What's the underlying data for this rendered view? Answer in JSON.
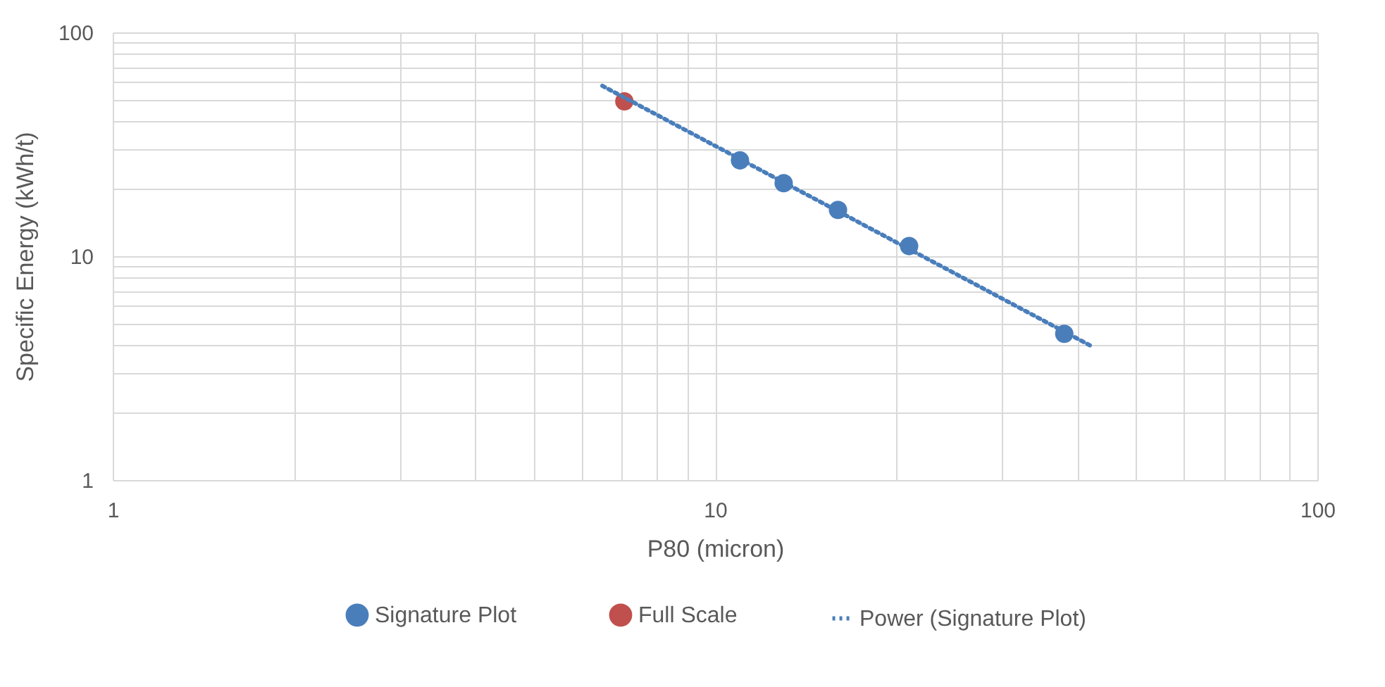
{
  "chart_data": {
    "type": "scatter",
    "xlabel": "P80 (micron)",
    "ylabel": "Specific Energy (kWh/t)",
    "log": "xy",
    "grid": true,
    "legend": "bottom",
    "xlim": [
      1,
      100
    ],
    "ylim": [
      1,
      100
    ],
    "xticks": [
      1,
      {
        "value": 2,
        "label": null
      },
      {
        "value": 3,
        "label": null
      },
      {
        "value": 4,
        "label": null
      },
      {
        "value": 5,
        "label": null
      },
      {
        "value": 6,
        "label": null
      },
      {
        "value": 7,
        "label": null
      },
      {
        "value": 8,
        "label": null
      },
      {
        "value": 9,
        "label": null
      },
      10,
      {
        "value": 20,
        "label": null
      },
      {
        "value": 30,
        "label": null
      },
      {
        "value": 40,
        "label": null
      },
      {
        "value": 50,
        "label": null
      },
      {
        "value": 60,
        "label": null
      },
      {
        "value": 70,
        "label": null
      },
      {
        "value": 80,
        "label": null
      },
      {
        "value": 90,
        "label": null
      },
      100
    ],
    "yticks": [
      1,
      {
        "value": 2,
        "label": null
      },
      {
        "value": 3,
        "label": null
      },
      {
        "value": 4,
        "label": null
      },
      {
        "value": 5,
        "label": null
      },
      {
        "value": 6,
        "label": null
      },
      {
        "value": 7,
        "label": null
      },
      {
        "value": 8,
        "label": null
      },
      {
        "value": 9,
        "label": null
      },
      10,
      {
        "value": 20,
        "label": null
      },
      {
        "value": 30,
        "label": null
      },
      {
        "value": 40,
        "label": null
      },
      {
        "value": 50,
        "label": null
      },
      {
        "value": 60,
        "label": null
      },
      {
        "value": 70,
        "label": null
      },
      {
        "value": 80,
        "label": null
      },
      {
        "value": 90,
        "label": null
      },
      100
    ],
    "series": [
      {
        "name": "Signature Plot",
        "marker": "circle",
        "color": "#4a7ebb",
        "x": [
          11.0,
          13.0,
          16.0,
          21.0,
          38.0
        ],
        "values": [
          26.8,
          21.2,
          16.1,
          11.1,
          4.5
        ]
      },
      {
        "name": "Full Scale",
        "marker": "circle",
        "color": "#c0504d",
        "x": [
          7.07
        ],
        "values": [
          49.2
        ]
      },
      {
        "name": "Power (Signature Plot)",
        "type": "line",
        "line_style": "dotted",
        "marker": "none",
        "color": "#4a7ebb",
        "x": [
          6.5,
          42.2
        ],
        "values": [
          57.7,
          3.96
        ]
      }
    ]
  }
}
